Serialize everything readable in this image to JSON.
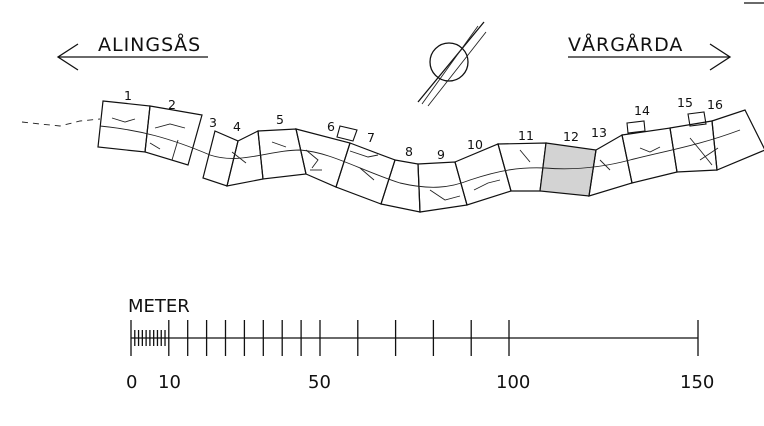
{
  "directions": {
    "left": "ALINGSÅS",
    "right": "VÅRGÅRDA"
  },
  "sections": [
    "1",
    "2",
    "3",
    "4",
    "5",
    "6",
    "7",
    "8",
    "9",
    "10",
    "11",
    "12",
    "13",
    "14",
    "15",
    "16"
  ],
  "highlighted_section": "12",
  "scale": {
    "unit_label": "METER",
    "tick_labels": [
      "0",
      "10",
      "50",
      "100",
      "150"
    ]
  },
  "colors": {
    "line": "#111111",
    "highlight_fill": "#d3d3d3"
  },
  "icons": [
    "compass-icon",
    "arrow-left-icon",
    "arrow-right-icon"
  ]
}
